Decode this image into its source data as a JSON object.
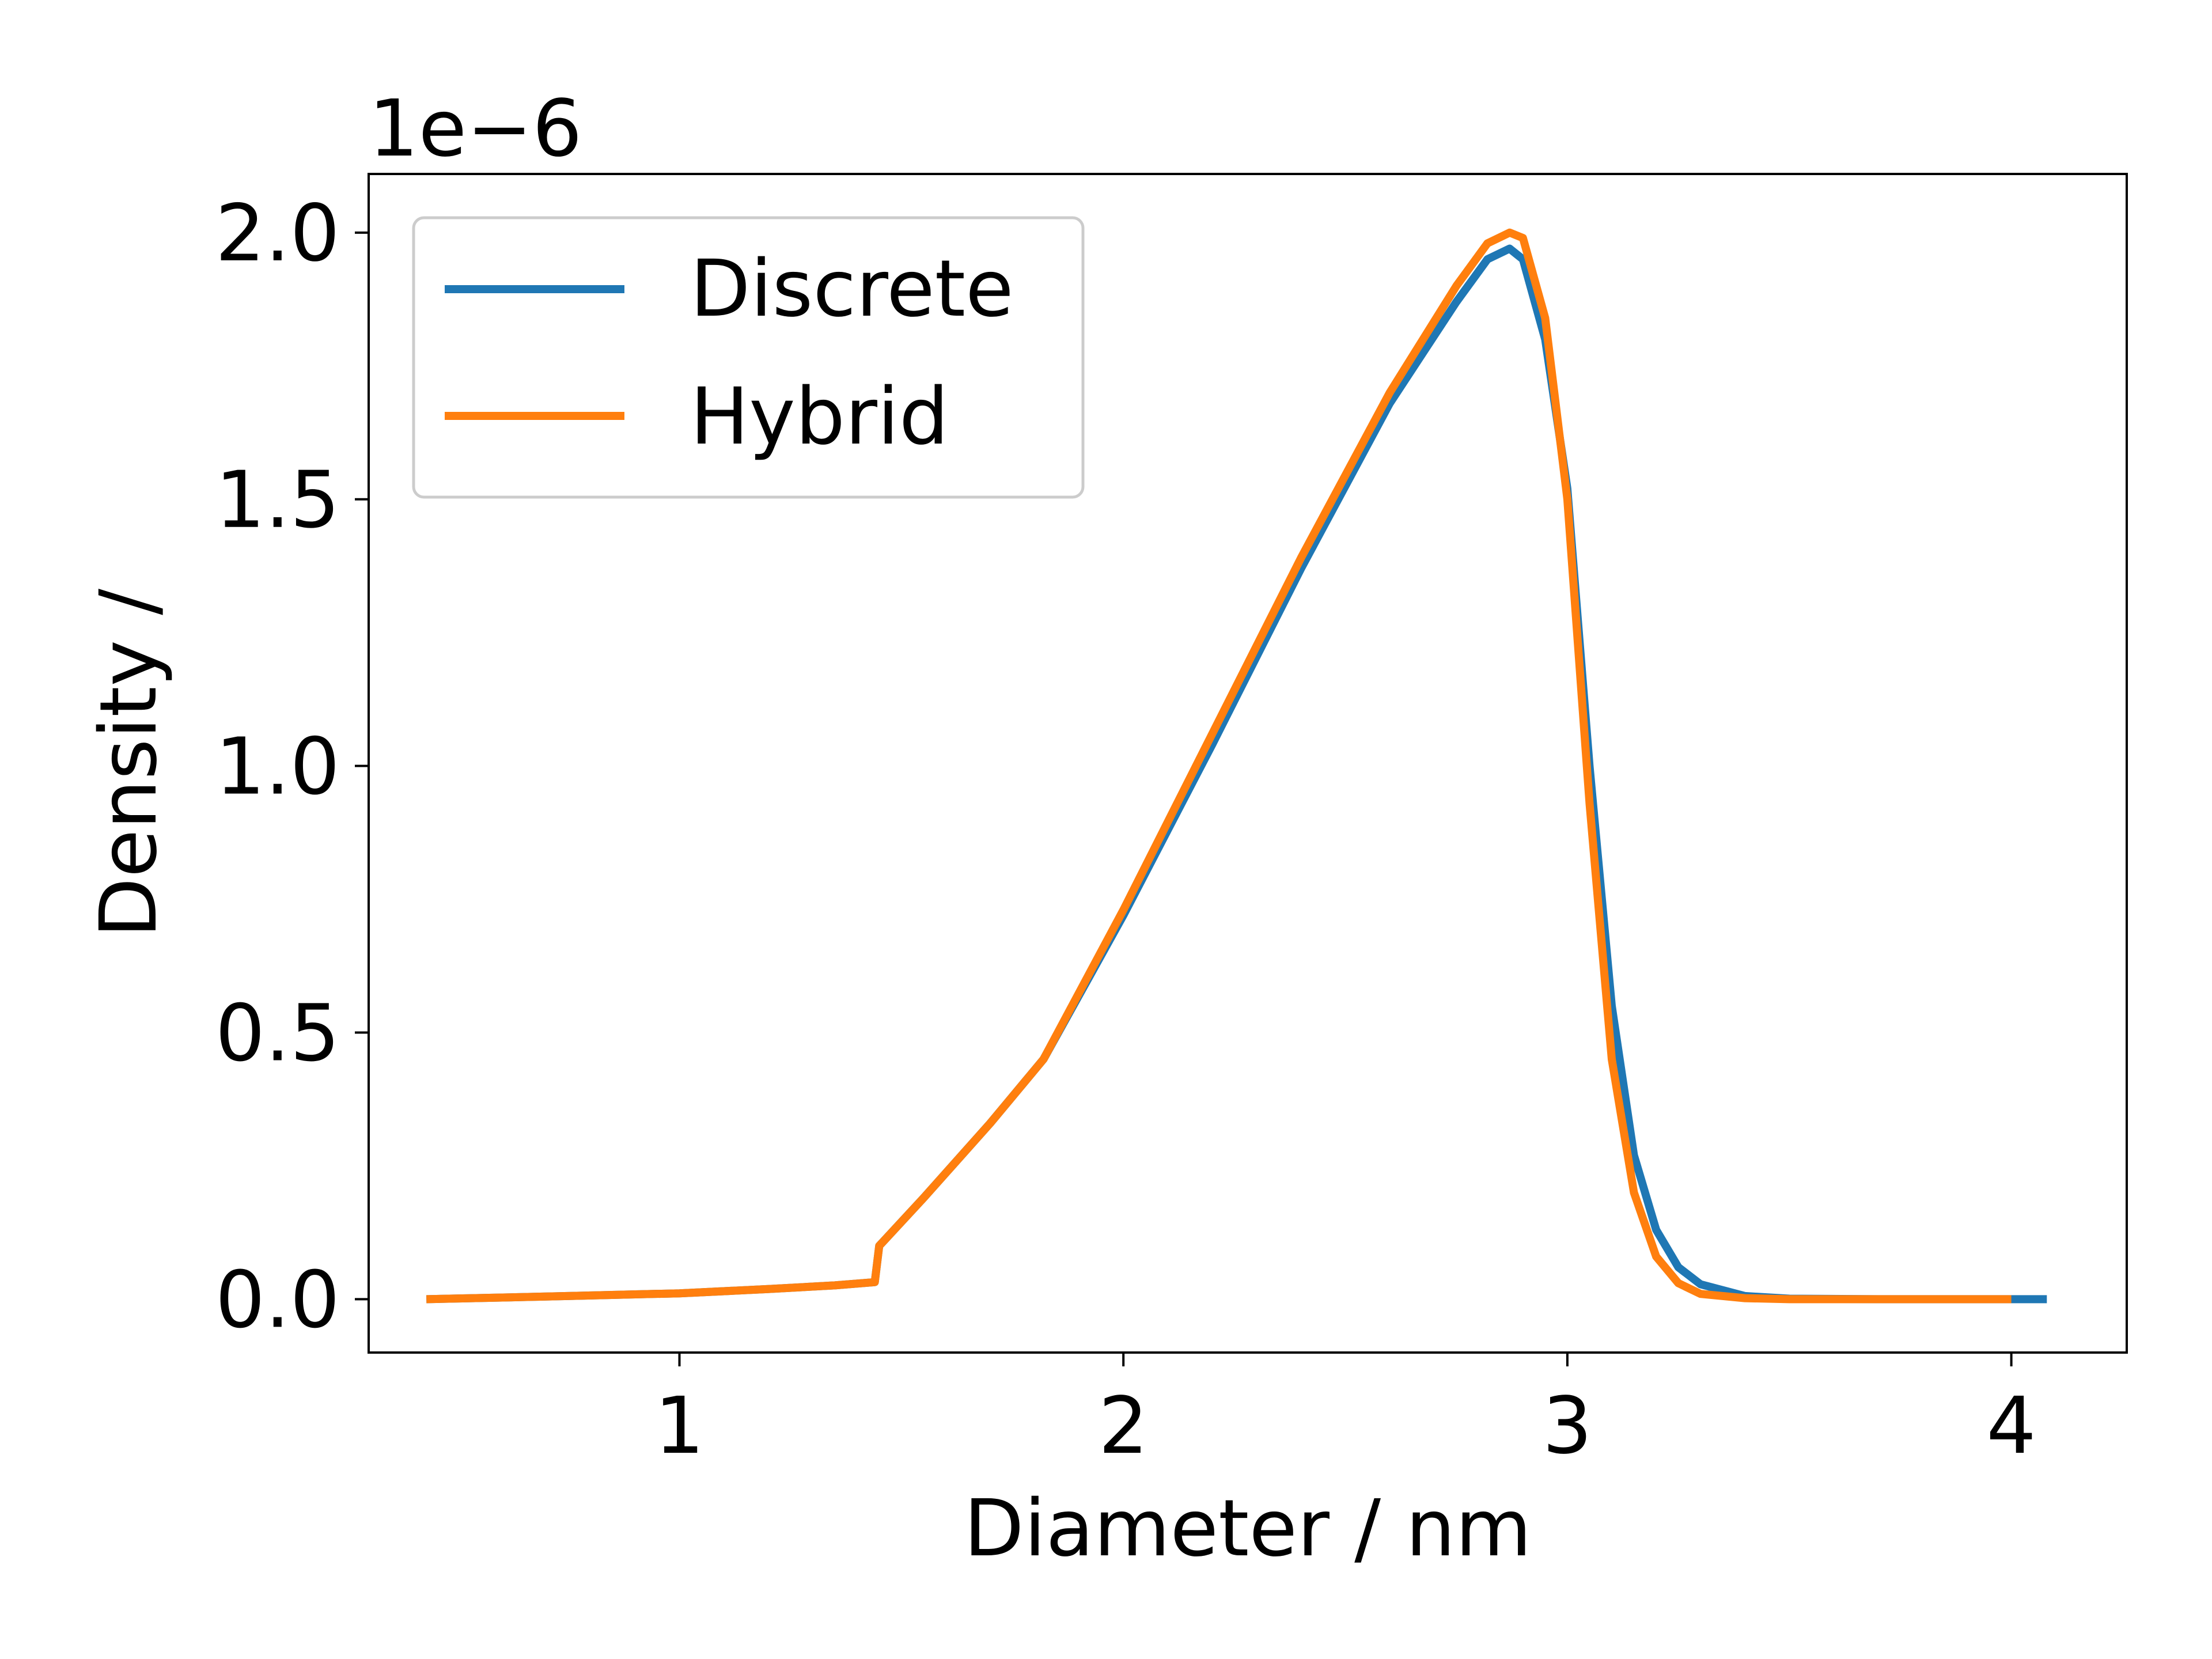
{
  "chart_data": {
    "type": "line",
    "xlabel": "Diameter / nm",
    "ylabel": "Density /",
    "y_offset_label": "1e−6",
    "xlim": [
      0.3,
      4.26
    ],
    "ylim": [
      -0.1,
      2.11
    ],
    "x_ticks": [
      1,
      2,
      3,
      4
    ],
    "y_ticks": [
      0.0,
      0.5,
      1.0,
      1.5,
      2.0
    ],
    "x_tick_labels": [
      "1",
      "2",
      "3",
      "4"
    ],
    "y_tick_labels": [
      "0.0",
      "0.5",
      "1.0",
      "1.5",
      "2.0"
    ],
    "grid": false,
    "legend_position": "upper-left",
    "series": [
      {
        "name": "Discrete",
        "color": "#1f77b4",
        "x": [
          0.43,
          0.7,
          1.0,
          1.2,
          1.35,
          1.44,
          1.45,
          1.55,
          1.7,
          1.82,
          2.0,
          2.2,
          2.4,
          2.6,
          2.75,
          2.82,
          2.87,
          2.9,
          2.95,
          3.0,
          3.05,
          3.1,
          3.15,
          3.2,
          3.25,
          3.3,
          3.4,
          3.5,
          3.7,
          4.0,
          4.08
        ],
        "y": [
          0.0,
          0.005,
          0.011,
          0.019,
          0.026,
          0.032,
          0.1,
          0.19,
          0.33,
          0.45,
          0.72,
          1.04,
          1.37,
          1.68,
          1.87,
          1.95,
          1.97,
          1.95,
          1.8,
          1.52,
          1.0,
          0.55,
          0.27,
          0.13,
          0.06,
          0.028,
          0.006,
          0.001,
          0.0,
          0.0,
          0.0
        ]
      },
      {
        "name": "Hybrid",
        "color": "#ff7f0e",
        "x": [
          0.43,
          0.7,
          1.0,
          1.2,
          1.35,
          1.44,
          1.45,
          1.55,
          1.7,
          1.82,
          2.0,
          2.2,
          2.4,
          2.6,
          2.75,
          2.82,
          2.87,
          2.9,
          2.95,
          3.0,
          3.05,
          3.1,
          3.15,
          3.2,
          3.25,
          3.3,
          3.4,
          3.5,
          3.7,
          4.0
        ],
        "y": [
          0.0,
          0.005,
          0.011,
          0.019,
          0.026,
          0.032,
          0.1,
          0.19,
          0.33,
          0.45,
          0.73,
          1.06,
          1.39,
          1.7,
          1.9,
          1.98,
          2.0,
          1.99,
          1.84,
          1.5,
          0.93,
          0.45,
          0.2,
          0.08,
          0.03,
          0.01,
          0.002,
          0.0,
          0.0,
          0.0
        ]
      }
    ]
  }
}
